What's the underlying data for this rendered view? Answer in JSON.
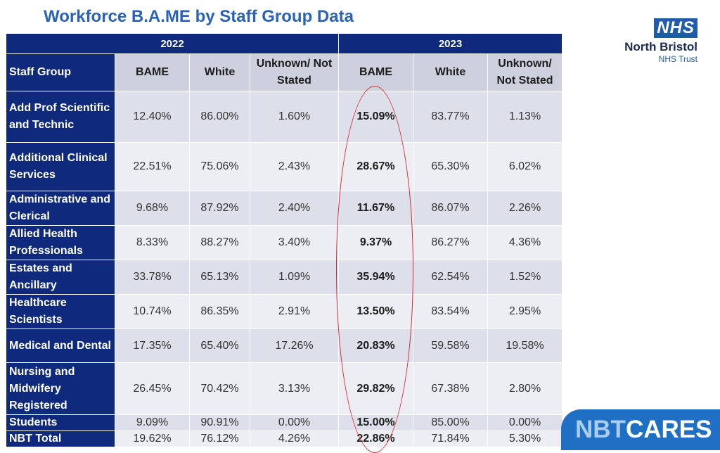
{
  "title": "Workforce B.A.ME by Staff Group Data",
  "logo": {
    "nhs": "NHS",
    "org": "North Bristol",
    "trust": "NHS Trust"
  },
  "years": [
    "2022",
    "2023"
  ],
  "headers": {
    "staff_group": "Staff Group",
    "bame": "BAME",
    "white": "White",
    "unknown_2022": "Unknown/ Not Stated",
    "unknown_2023": "Unknown/ Not Stated"
  },
  "rows": [
    {
      "group": "Add Prof Scientific and Technic",
      "v": [
        "12.40%",
        "86.00%",
        "1.60%",
        "15.09%",
        "83.77%",
        "1.13%"
      ]
    },
    {
      "group": "Additional Clinical Services",
      "v": [
        "22.51%",
        "75.06%",
        "2.43%",
        "28.67%",
        "65.30%",
        "6.02%"
      ]
    },
    {
      "group": "Administrative and Clerical",
      "v": [
        "9.68%",
        "87.92%",
        "2.40%",
        "11.67%",
        "86.07%",
        "2.26%"
      ]
    },
    {
      "group": "Allied Health Professionals",
      "v": [
        "8.33%",
        "88.27%",
        "3.40%",
        "9.37%",
        "86.27%",
        "4.36%"
      ]
    },
    {
      "group": "Estates and Ancillary",
      "v": [
        "33.78%",
        "65.13%",
        "1.09%",
        "35.94%",
        "62.54%",
        "1.52%"
      ]
    },
    {
      "group": "Healthcare Scientists",
      "v": [
        "10.74%",
        "86.35%",
        "2.91%",
        "13.50%",
        "83.54%",
        "2.95%"
      ]
    },
    {
      "group": "Medical and Dental",
      "v": [
        "17.35%",
        "65.40%",
        "17.26%",
        "20.83%",
        "59.58%",
        "19.58%"
      ]
    },
    {
      "group": "Nursing and Midwifery Registered",
      "v": [
        "26.45%",
        "70.42%",
        "3.13%",
        "29.82%",
        "67.38%",
        "2.80%"
      ]
    },
    {
      "group": "Students",
      "v": [
        "9.09%",
        "90.91%",
        "0.00%",
        "15.00%",
        "85.00%",
        "0.00%"
      ]
    },
    {
      "group": "NBT Total",
      "v": [
        "19.62%",
        "76.12%",
        "4.26%",
        "22.86%",
        "71.84%",
        "5.30%"
      ]
    }
  ],
  "brand": {
    "part1": "NBT",
    "part2": "CARES"
  }
}
